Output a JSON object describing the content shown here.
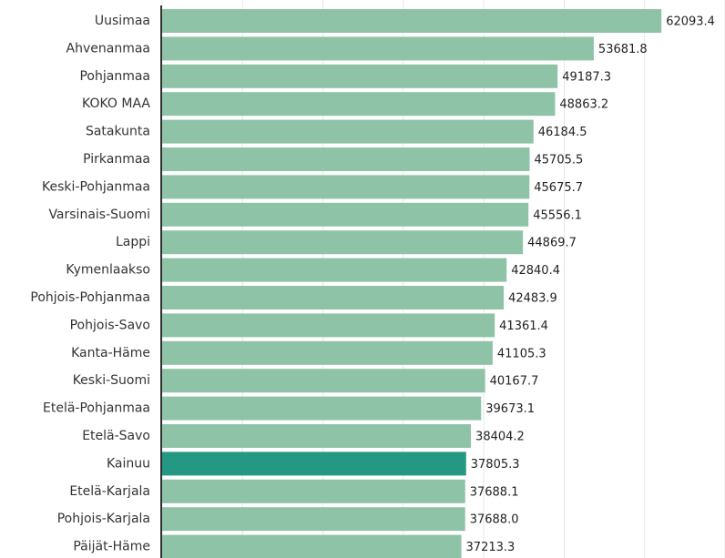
{
  "chart_data": {
    "type": "barh",
    "categories": [
      "Uusimaa",
      "Ahvenanmaa",
      "Pohjanmaa",
      "KOKO MAA",
      "Satakunta",
      "Pirkanmaa",
      "Keski-Pohjanmaa",
      "Varsinais-Suomi",
      "Lappi",
      "Kymenlaakso",
      "Pohjois-Pohjanmaa",
      "Pohjois-Savo",
      "Kanta-Häme",
      "Keski-Suomi",
      "Etelä-Pohjanmaa",
      "Etelä-Savo",
      "Kainuu",
      "Etelä-Karjala",
      "Pohjois-Karjala",
      "Päijät-Häme"
    ],
    "values": [
      62093.4,
      53681.8,
      49187.3,
      48863.2,
      46184.5,
      45705.5,
      45675.7,
      45556.1,
      44869.7,
      42840.4,
      42483.9,
      41361.4,
      41105.3,
      40167.7,
      39673.1,
      38404.2,
      37805.3,
      37688.1,
      37688.0,
      37213.3
    ],
    "value_labels": [
      "62093.4",
      "53681.8",
      "49187.3",
      "48863.2",
      "46184.5",
      "45705.5",
      "45675.7",
      "45556.1",
      "44869.7",
      "42840.4",
      "42483.9",
      "41361.4",
      "41105.3",
      "40167.7",
      "39673.1",
      "38404.2",
      "37805.3",
      "37688.1",
      "37688.0",
      "37213.3"
    ],
    "colors": [
      "#8ec3a7",
      "#8ec3a7",
      "#8ec3a7",
      "#8ec3a7",
      "#8ec3a7",
      "#8ec3a7",
      "#8ec3a7",
      "#8ec3a7",
      "#8ec3a7",
      "#8ec3a7",
      "#8ec3a7",
      "#8ec3a7",
      "#8ec3a7",
      "#8ec3a7",
      "#8ec3a7",
      "#8ec3a7",
      "#259883",
      "#8ec3a7",
      "#8ec3a7",
      "#8ec3a7"
    ],
    "xlim": [
      0,
      70000
    ],
    "xticks": [
      0,
      10000,
      20000,
      30000,
      40000,
      50000,
      60000,
      70000
    ],
    "grid": true
  }
}
